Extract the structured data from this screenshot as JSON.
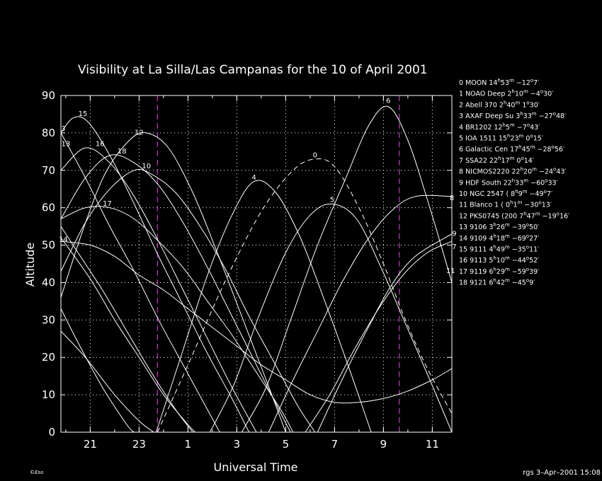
{
  "chart_data": {
    "type": "line",
    "title": "Visibility at La Silla/Las Campanas for the 10 of April 2001",
    "xlabel": "Universal Time",
    "ylabel": "Altitude",
    "xlim": [
      19.8,
      11.8
    ],
    "ylim": [
      0,
      90
    ],
    "grid": true,
    "x_ticks": [
      21,
      23,
      1,
      3,
      5,
      7,
      9,
      11
    ],
    "y_ticks": [
      0,
      10,
      20,
      30,
      40,
      50,
      60,
      70,
      80,
      90
    ],
    "time_markers": [
      23.75,
      9.65
    ],
    "series": [
      {
        "name": "0 MOON",
        "points": [
          [
            23.75,
            0
          ],
          [
            1.0,
            18
          ],
          [
            2.5,
            40
          ],
          [
            4.0,
            59
          ],
          [
            5.3,
            70
          ],
          [
            6.2,
            73
          ],
          [
            7.0,
            71
          ],
          [
            8.0,
            60
          ],
          [
            9.0,
            45
          ],
          [
            9.9,
            30
          ],
          [
            10.8,
            17
          ],
          [
            11.8,
            5
          ]
        ],
        "dashed": true
      },
      {
        "name": "1 NOAO Deep",
        "points": [
          [
            19.8,
            33
          ],
          [
            20.5,
            24
          ],
          [
            21.5,
            12
          ],
          [
            22.5,
            2
          ],
          [
            22.8,
            0
          ]
        ]
      },
      {
        "name": "2 Abell 370",
        "points": [
          [
            19.8,
            27
          ],
          [
            20.8,
            20
          ],
          [
            22.0,
            10
          ],
          [
            23.0,
            3
          ],
          [
            23.6,
            0
          ]
        ]
      },
      {
        "name": "3 AXAF Deep Su",
        "points": [
          [
            19.8,
            55
          ],
          [
            20.5,
            48
          ],
          [
            21.5,
            38
          ],
          [
            22.5,
            27
          ],
          [
            23.5,
            16
          ],
          [
            0.5,
            6
          ],
          [
            1.2,
            0
          ]
        ]
      },
      {
        "name": "4 BR1202",
        "points": [
          [
            23.7,
            0
          ],
          [
            0.8,
            22
          ],
          [
            1.8,
            42
          ],
          [
            2.8,
            58
          ],
          [
            3.7,
            67
          ],
          [
            4.6,
            64
          ],
          [
            5.6,
            52
          ],
          [
            6.6,
            35
          ],
          [
            7.6,
            17
          ],
          [
            8.5,
            0
          ]
        ]
      },
      {
        "name": "5 IOA 1511",
        "points": [
          [
            1.9,
            0
          ],
          [
            2.9,
            13
          ],
          [
            3.9,
            31
          ],
          [
            5.0,
            48
          ],
          [
            6.0,
            58
          ],
          [
            6.9,
            61
          ],
          [
            7.9,
            57
          ],
          [
            8.9,
            44
          ],
          [
            9.9,
            29
          ],
          [
            10.9,
            14
          ],
          [
            11.8,
            0
          ]
        ]
      },
      {
        "name": "6 Galactic Cen",
        "points": [
          [
            3.2,
            0
          ],
          [
            4.2,
            12
          ],
          [
            5.2,
            30
          ],
          [
            6.3,
            50
          ],
          [
            7.4,
            67
          ],
          [
            8.4,
            82
          ],
          [
            9.2,
            87
          ],
          [
            10.0,
            78
          ],
          [
            10.9,
            60
          ],
          [
            11.8,
            40
          ]
        ]
      },
      {
        "name": "7 SSA22",
        "points": [
          [
            5.8,
            0
          ],
          [
            6.8,
            10
          ],
          [
            7.8,
            22
          ],
          [
            8.8,
            33
          ],
          [
            9.8,
            42
          ],
          [
            10.8,
            48
          ],
          [
            11.8,
            51
          ]
        ]
      },
      {
        "name": "8 NICMOS2220",
        "points": [
          [
            4.3,
            0
          ],
          [
            5.3,
            14
          ],
          [
            6.3,
            27
          ],
          [
            7.3,
            40
          ],
          [
            8.3,
            51
          ],
          [
            9.3,
            59
          ],
          [
            10.3,
            63
          ],
          [
            11.8,
            63
          ]
        ]
      },
      {
        "name": "9 HDF South",
        "points": [
          [
            6.3,
            0
          ],
          [
            7.3,
            14
          ],
          [
            8.3,
            27
          ],
          [
            9.3,
            39
          ],
          [
            10.3,
            47
          ],
          [
            11.8,
            53
          ]
        ]
      },
      {
        "name": "10 NGC 2547",
        "points": [
          [
            19.8,
            43
          ],
          [
            20.8,
            56
          ],
          [
            21.8,
            65
          ],
          [
            22.8,
            70
          ],
          [
            23.5,
            69
          ],
          [
            0.5,
            64
          ],
          [
            1.5,
            55
          ],
          [
            2.5,
            44
          ],
          [
            3.5,
            31
          ],
          [
            4.5,
            19
          ],
          [
            5.5,
            7
          ],
          [
            6.2,
            0
          ]
        ]
      },
      {
        "name": "11 Blanco 1",
        "points": [
          [
            19.8,
            52
          ],
          [
            21.0,
            41
          ],
          [
            22.0,
            30
          ],
          [
            23.0,
            20
          ],
          [
            0.0,
            10
          ],
          [
            1.0,
            2
          ],
          [
            1.3,
            0
          ]
        ]
      },
      {
        "name": "12 PKS0745",
        "points": [
          [
            19.8,
            36
          ],
          [
            20.7,
            54
          ],
          [
            21.6,
            69
          ],
          [
            22.6,
            78
          ],
          [
            23.3,
            80
          ],
          [
            0.2,
            76
          ],
          [
            1.2,
            64
          ],
          [
            2.2,
            48
          ],
          [
            3.2,
            31
          ],
          [
            4.2,
            14
          ],
          [
            5.0,
            0
          ]
        ]
      },
      {
        "name": "13 9106",
        "points": [
          [
            19.8,
            80
          ],
          [
            20.8,
            68
          ],
          [
            21.8,
            55
          ],
          [
            22.8,
            43
          ],
          [
            23.8,
            30
          ],
          [
            0.8,
            18
          ],
          [
            1.8,
            6
          ],
          [
            2.3,
            0
          ]
        ]
      },
      {
        "name": "14 9109",
        "points": [
          [
            19.8,
            51
          ],
          [
            21.0,
            50
          ],
          [
            22.0,
            47
          ],
          [
            23.0,
            42
          ],
          [
            0.0,
            38
          ],
          [
            1.0,
            33
          ],
          [
            2.0,
            28
          ],
          [
            3.0,
            23
          ],
          [
            4.0,
            18
          ],
          [
            5.0,
            14
          ],
          [
            6.0,
            10
          ],
          [
            7.0,
            8
          ],
          [
            8.0,
            8
          ],
          [
            9.0,
            9
          ],
          [
            10.0,
            11
          ],
          [
            11.0,
            14
          ],
          [
            11.8,
            17
          ]
        ]
      },
      {
        "name": "15 9111",
        "points": [
          [
            19.8,
            80
          ],
          [
            20.3,
            84
          ],
          [
            20.9,
            83
          ],
          [
            21.8,
            74
          ],
          [
            22.8,
            61
          ],
          [
            23.8,
            47
          ],
          [
            0.8,
            34
          ],
          [
            1.8,
            21
          ],
          [
            2.8,
            9
          ],
          [
            3.5,
            0
          ]
        ]
      },
      {
        "name": "16 9113",
        "points": [
          [
            19.8,
            70
          ],
          [
            20.8,
            76
          ],
          [
            21.8,
            72
          ],
          [
            22.8,
            63
          ],
          [
            23.8,
            51
          ],
          [
            0.8,
            38
          ],
          [
            1.8,
            25
          ],
          [
            2.8,
            12
          ],
          [
            3.8,
            0
          ]
        ]
      },
      {
        "name": "17 9119",
        "points": [
          [
            19.8,
            57
          ],
          [
            20.8,
            60
          ],
          [
            21.8,
            60
          ],
          [
            22.8,
            57
          ],
          [
            23.8,
            51
          ],
          [
            0.8,
            44
          ],
          [
            1.8,
            35
          ],
          [
            2.8,
            26
          ],
          [
            3.8,
            16
          ],
          [
            4.8,
            6
          ],
          [
            5.3,
            0
          ]
        ]
      },
      {
        "name": "18 9121",
        "points": [
          [
            19.8,
            57
          ],
          [
            20.8,
            68
          ],
          [
            21.8,
            74
          ],
          [
            22.8,
            72
          ],
          [
            23.8,
            66
          ],
          [
            0.8,
            56
          ],
          [
            1.8,
            44
          ],
          [
            2.8,
            31
          ],
          [
            3.8,
            18
          ],
          [
            4.8,
            5
          ],
          [
            5.2,
            0
          ]
        ]
      }
    ],
    "curve_labels": [
      {
        "text": "15",
        "x": 20.7,
        "y": 84.5
      },
      {
        "text": "16",
        "x": 21.4,
        "y": 76.5
      },
      {
        "text": "18",
        "x": 22.3,
        "y": 74.5
      },
      {
        "text": "12",
        "x": 23.0,
        "y": 79.5
      },
      {
        "text": "10",
        "x": 23.3,
        "y": 70.5
      },
      {
        "text": "4",
        "x": 3.7,
        "y": 67.5
      },
      {
        "text": "0",
        "x": 6.2,
        "y": 73.5
      },
      {
        "text": "5",
        "x": 6.9,
        "y": 61.5
      },
      {
        "text": "6",
        "x": 9.2,
        "y": 88
      },
      {
        "text": "17",
        "x": 21.7,
        "y": 60.5
      },
      {
        "text": "3",
        "x": 19.9,
        "y": 80.5
      },
      {
        "text": "13",
        "x": 20.0,
        "y": 76.5
      },
      {
        "text": "14",
        "x": 19.9,
        "y": 51
      },
      {
        "text": "8",
        "x": 11.8,
        "y": 62
      },
      {
        "text": "9",
        "x": 11.9,
        "y": 52.5
      },
      {
        "text": "7",
        "x": 11.9,
        "y": 49
      },
      {
        "text": "11",
        "x": 11.75,
        "y": 42.5
      }
    ]
  },
  "legend": [
    {
      "num": "0",
      "name": "MOON",
      "ra_h": "14",
      "ra_m": "53",
      "dec_d": "−12",
      "dec_m": "7"
    },
    {
      "num": "1",
      "name": "NOAO Deep",
      "ra_h": "2",
      "ra_m": "10",
      "dec_d": "−4",
      "dec_m": "30"
    },
    {
      "num": "2",
      "name": "Abell 370",
      "ra_h": "2",
      "ra_m": "40",
      "dec_d": "1",
      "dec_m": "30"
    },
    {
      "num": "3",
      "name": "AXAF Deep Su",
      "ra_h": "3",
      "ra_m": "33",
      "dec_d": "−27",
      "dec_m": "48"
    },
    {
      "num": "4",
      "name": "BR1202",
      "ra_h": "12",
      "ra_m": "5",
      "dec_d": "−7",
      "dec_m": "43"
    },
    {
      "num": "5",
      "name": "IOA 1511",
      "ra_h": "15",
      "ra_m": "23",
      "dec_d": "0",
      "dec_m": "15"
    },
    {
      "num": "6",
      "name": "Galactic Cen",
      "ra_h": "17",
      "ra_m": "45",
      "dec_d": "−28",
      "dec_m": "56"
    },
    {
      "num": "7",
      "name": "SSA22",
      "ra_h": "22",
      "ra_m": "17",
      "dec_d": "0",
      "dec_m": "14"
    },
    {
      "num": "8",
      "name": "NICMOS2220",
      "ra_h": "22",
      "ra_m": "20",
      "dec_d": "−24",
      "dec_m": "43"
    },
    {
      "num": "9",
      "name": "HDF South",
      "ra_h": "22",
      "ra_m": "33",
      "dec_d": "−60",
      "dec_m": "33"
    },
    {
      "num": "10",
      "name": "NGC 2547",
      "ra_h": "( 8",
      "ra_m": "9",
      "dec_d": "−49",
      "dec_m": "7"
    },
    {
      "num": "11",
      "name": "Blanco 1",
      "ra_h": "( 0",
      "ra_m": "1",
      "dec_d": "−30",
      "dec_m": "13"
    },
    {
      "num": "12",
      "name": "PKS0745 (200",
      "ra_h": "7",
      "ra_m": "47",
      "dec_d": "−19",
      "dec_m": "16"
    },
    {
      "num": "13",
      "name": "9106",
      "ra_h": "3",
      "ra_m": "26",
      "dec_d": "−39",
      "dec_m": "50"
    },
    {
      "num": "14",
      "name": "9109",
      "ra_h": "4",
      "ra_m": "18",
      "dec_d": "−69",
      "dec_m": "27"
    },
    {
      "num": "15",
      "name": "9111",
      "ra_h": "4",
      "ra_m": "49",
      "dec_d": "−35",
      "dec_m": "11"
    },
    {
      "num": "16",
      "name": "9113",
      "ra_h": "5",
      "ra_m": "10",
      "dec_d": "−44",
      "dec_m": "52"
    },
    {
      "num": "17",
      "name": "9119",
      "ra_h": "6",
      "ra_m": "29",
      "dec_d": "−59",
      "dec_m": "39"
    },
    {
      "num": "18",
      "name": "9121",
      "ra_h": "6",
      "ra_m": "42",
      "dec_d": "−45",
      "dec_m": "9"
    }
  ],
  "footer": {
    "credit": "rgs  3–Apr–2001 15:08",
    "logo": "©Eso"
  },
  "colors": {
    "background": "#000000",
    "foreground": "#ffffff",
    "marker": "#cc33cc"
  }
}
